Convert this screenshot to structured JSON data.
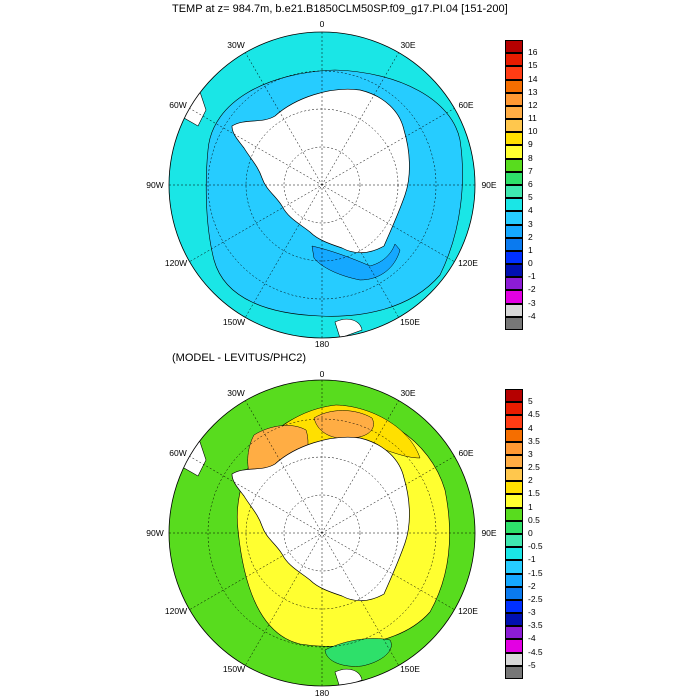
{
  "panel_top": {
    "title": "TEMP at z= 984.7m, b.e21.B1850CLM50SP.f09_g17.PI.04 [151-200]",
    "longitude_labels": [
      "0",
      "30E",
      "60E",
      "90E",
      "120E",
      "150E",
      "180",
      "150W",
      "120W",
      "90W",
      "60W",
      "30W"
    ],
    "colorbar": {
      "labels": [
        "16",
        "15",
        "14",
        "13",
        "12",
        "11",
        "10",
        "9",
        "8",
        "7",
        "6",
        "5",
        "4",
        "3",
        "2",
        "1",
        "0",
        "-1",
        "-2",
        "-3",
        "-4"
      ],
      "colors": [
        "#b50000",
        "#e81c00",
        "#ff3c14",
        "#f56e00",
        "#ff9933",
        "#ffad44",
        "#ffc74d",
        "#ffe000",
        "#ffff30",
        "#58dc1e",
        "#2ee06a",
        "#3fe8b0",
        "#1ae6e6",
        "#26ccff",
        "#15a8ff",
        "#0a7aef",
        "#0030ff",
        "#0010b0",
        "#8c1cd6",
        "#e300e3",
        "#d8d8d8",
        "#777777"
      ]
    }
  },
  "panel_bottom": {
    "title": "(MODEL - LEVITUS/PHC2)",
    "longitude_labels": [
      "0",
      "30E",
      "60E",
      "90E",
      "120E",
      "150E",
      "180",
      "150W",
      "120W",
      "90W",
      "60W",
      "30W"
    ],
    "colorbar": {
      "labels": [
        "5",
        "4.5",
        "4",
        "3.5",
        "3",
        "2.5",
        "2",
        "1.5",
        "1",
        "0.5",
        "0",
        "-0.5",
        "-1",
        "-1.5",
        "-2",
        "-2.5",
        "-3",
        "-3.5",
        "-4",
        "-4.5",
        "-5"
      ],
      "colors": [
        "#b50000",
        "#e81c00",
        "#ff3c14",
        "#f56e00",
        "#ff9933",
        "#ffad44",
        "#ffc74d",
        "#ffe000",
        "#ffff30",
        "#58dc1e",
        "#2ee06a",
        "#3fe8b0",
        "#1ae6e6",
        "#26ccff",
        "#15a8ff",
        "#0a7aef",
        "#0030ff",
        "#0010b0",
        "#8c1cd6",
        "#e300e3",
        "#d8d8d8",
        "#777777"
      ]
    }
  }
}
